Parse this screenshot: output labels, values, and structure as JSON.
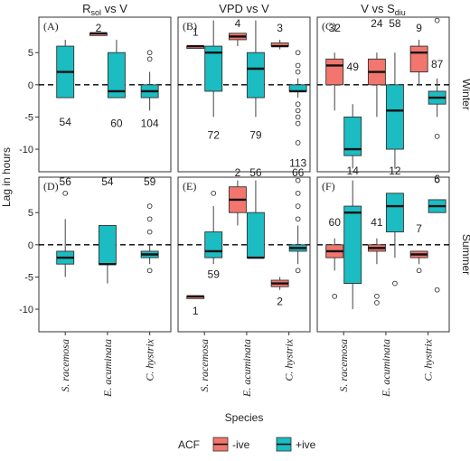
{
  "chart_data": {
    "type": "boxplot",
    "ylabel": "Lag in hours",
    "xlabel": "Species",
    "ylim": [
      -13.5,
      10.5
    ],
    "yticks": [
      -10,
      -5,
      0,
      5
    ],
    "categories": [
      "S. racemosa",
      "E. acuminata",
      "C. hystrix"
    ],
    "columns": [
      {
        "title": "R",
        "sub": "sol",
        "suffix": " vs V"
      },
      {
        "title": "VPD vs V",
        "sub": "",
        "suffix": ""
      },
      {
        "title": "V vs S",
        "sub": "diu",
        "suffix": ""
      }
    ],
    "rows": [
      {
        "strip": "Winter"
      },
      {
        "strip": "Summer"
      }
    ],
    "legend": {
      "title": "ACF",
      "items": [
        {
          "label": "-ive",
          "color": "#F2766E"
        },
        {
          "label": "+ive",
          "color": "#1BBCC2"
        }
      ]
    },
    "panels": [
      {
        "label": "(A)",
        "boxes": [
          {
            "cat": 0,
            "series": "pos",
            "q1": -2,
            "median": 2,
            "q3": 6,
            "lo": -2,
            "hi": 7,
            "outliers": [],
            "n": "54",
            "n_y": -5.8
          },
          {
            "cat": 1,
            "series": "neg",
            "q1": 8,
            "median": 8,
            "q3": 8,
            "lo": 8,
            "hi": 8,
            "outliers": [],
            "n": "2",
            "n_y": 8.8
          },
          {
            "cat": 1,
            "series": "pos",
            "q1": -2,
            "median": -1,
            "q3": 5,
            "lo": -2,
            "hi": 7,
            "outliers": [],
            "n": "60",
            "n_y": -6
          },
          {
            "cat": 2,
            "series": "pos",
            "q1": -2,
            "median": -1,
            "q3": 0,
            "lo": -4,
            "hi": 2,
            "outliers": [
              5,
              4
            ],
            "n": "104",
            "n_y": -6
          }
        ]
      },
      {
        "label": "(B)",
        "boxes": [
          {
            "cat": 0,
            "series": "neg",
            "q1": 6,
            "median": 6,
            "q3": 6,
            "lo": 6,
            "hi": 6,
            "outliers": [],
            "n": "1",
            "n_y": 8.2
          },
          {
            "cat": 0,
            "series": "pos",
            "q1": -1,
            "median": 5,
            "q3": 6,
            "lo": -5,
            "hi": 10,
            "outliers": [],
            "n": "72",
            "n_y": -7.8
          },
          {
            "cat": 1,
            "series": "neg",
            "q1": 7,
            "median": 7.5,
            "q3": 8,
            "lo": 6,
            "hi": 8,
            "outliers": [],
            "n": "4",
            "n_y": 9.5
          },
          {
            "cat": 1,
            "series": "pos",
            "q1": -2,
            "median": 2.5,
            "q3": 5,
            "lo": -5,
            "hi": 10,
            "outliers": [],
            "n": "79",
            "n_y": -7.8
          },
          {
            "cat": 2,
            "series": "neg",
            "q1": 6,
            "median": 6,
            "q3": 6.5,
            "lo": 5.5,
            "hi": 7,
            "outliers": [],
            "n": "3",
            "n_y": 8.8
          },
          {
            "cat": 2,
            "series": "pos",
            "q1": -1,
            "median": -1,
            "q3": 0,
            "lo": -2,
            "hi": 1,
            "outliers": [
              5,
              3,
              2,
              -3,
              -4,
              -5,
              -6,
              -9
            ],
            "n": "113",
            "n_y": -12.2
          }
        ]
      },
      {
        "label": "(C)",
        "boxes": [
          {
            "cat": 0,
            "series": "neg",
            "q1": 0,
            "median": 3,
            "q3": 4,
            "lo": -4,
            "hi": 5,
            "outliers": [],
            "n": "32",
            "n_y": 8.8
          },
          {
            "cat": 0,
            "series": "pos",
            "q1": -11,
            "median": -10,
            "q3": -5,
            "lo": -13,
            "hi": -3,
            "outliers": [],
            "n": "49",
            "n_y": 2.8
          },
          {
            "cat": 1,
            "series": "neg",
            "q1": 0,
            "median": 2,
            "q3": 4,
            "lo": -5,
            "hi": 5,
            "outliers": [],
            "n": "24",
            "n_y": 9.5
          },
          {
            "cat": 1,
            "series": "pos",
            "q1": -10,
            "median": -4,
            "q3": 0,
            "lo": -13,
            "hi": 5,
            "outliers": [],
            "n": "58",
            "n_y": 9.5
          },
          {
            "cat": 2,
            "series": "neg",
            "q1": 2,
            "median": 5,
            "q3": 6,
            "lo": 0,
            "hi": 7,
            "outliers": [],
            "n": "9",
            "n_y": 8.8
          },
          {
            "cat": 2,
            "series": "pos",
            "q1": -3,
            "median": -2,
            "q3": -1,
            "lo": -5,
            "hi": 1,
            "outliers": [
              10,
              -8
            ],
            "n": "87",
            "n_y": 3.2
          }
        ]
      },
      {
        "label": "(D)",
        "boxes": [
          {
            "cat": 0,
            "series": "pos",
            "q1": -3,
            "median": -2,
            "q3": -1,
            "lo": -5,
            "hi": 4,
            "outliers": [
              8
            ],
            "n": "56",
            "n_y": 9.8
          },
          {
            "cat": 1,
            "series": "pos",
            "q1": -3,
            "median": -3,
            "q3": 3,
            "lo": -6,
            "hi": 3,
            "outliers": [],
            "n": "54",
            "n_y": 9.8
          },
          {
            "cat": 2,
            "series": "pos",
            "q1": -2,
            "median": -1.5,
            "q3": -1,
            "lo": -3,
            "hi": 0,
            "outliers": [
              6,
              4,
              2,
              -4
            ],
            "n": "59",
            "n_y": 9.8
          }
        ]
      },
      {
        "label": "(E)",
        "boxes": [
          {
            "cat": 0,
            "series": "neg",
            "q1": -8,
            "median": -8,
            "q3": -8,
            "lo": -8,
            "hi": -8,
            "outliers": [],
            "n": "1",
            "n_y": -10.3
          },
          {
            "cat": 0,
            "series": "pos",
            "q1": -2,
            "median": -1,
            "q3": 2,
            "lo": -3,
            "hi": 6,
            "outliers": [
              8
            ],
            "n": "59",
            "n_y": -4.6
          },
          {
            "cat": 1,
            "series": "neg",
            "q1": 5,
            "median": 7,
            "q3": 9,
            "lo": 3,
            "hi": 10,
            "outliers": [],
            "n": "2",
            "n_y": 11.2
          },
          {
            "cat": 1,
            "series": "pos",
            "q1": -2,
            "median": -2,
            "q3": 5,
            "lo": -2,
            "hi": 10,
            "outliers": [],
            "n": "56",
            "n_y": 11.2
          },
          {
            "cat": 2,
            "series": "neg",
            "q1": -6.5,
            "median": -6,
            "q3": -5.5,
            "lo": -7,
            "hi": -5,
            "outliers": [],
            "n": "2",
            "n_y": -8.8
          },
          {
            "cat": 2,
            "series": "pos",
            "q1": -1,
            "median": -0.5,
            "q3": 0,
            "lo": -3,
            "hi": 3,
            "outliers": [
              10,
              8,
              6,
              4,
              -4
            ],
            "n": "66",
            "n_y": 11.2
          }
        ]
      },
      {
        "label": "(F)",
        "boxes": [
          {
            "cat": 0,
            "series": "neg",
            "q1": -2,
            "median": -1,
            "q3": 0,
            "lo": -4,
            "hi": 1,
            "outliers": [
              -8
            ],
            "n": "60",
            "n_y": 3.5
          },
          {
            "cat": 0,
            "series": "pos",
            "q1": -6,
            "median": 5,
            "q3": 6,
            "lo": -10,
            "hi": 10,
            "outliers": [],
            "n": "14",
            "n_y": 11.5
          },
          {
            "cat": 1,
            "series": "neg",
            "q1": -1,
            "median": -0.5,
            "q3": 0,
            "lo": -3,
            "hi": 1,
            "outliers": [
              -8,
              -9
            ],
            "n": "41",
            "n_y": 3.5
          },
          {
            "cat": 1,
            "series": "pos",
            "q1": 2,
            "median": 6,
            "q3": 8,
            "lo": -2,
            "hi": 8,
            "outliers": [
              -6
            ],
            "n": "12",
            "n_y": 11.5
          },
          {
            "cat": 2,
            "series": "neg",
            "q1": -2,
            "median": -1.5,
            "q3": -1,
            "lo": -3,
            "hi": -1,
            "outliers": [
              -4
            ],
            "n": "7",
            "n_y": 2.5
          },
          {
            "cat": 2,
            "series": "pos",
            "q1": 5,
            "median": 6,
            "q3": 7,
            "lo": 5,
            "hi": 7,
            "outliers": [
              10,
              -7
            ],
            "n": "6",
            "n_y": 10.2
          }
        ]
      }
    ]
  }
}
